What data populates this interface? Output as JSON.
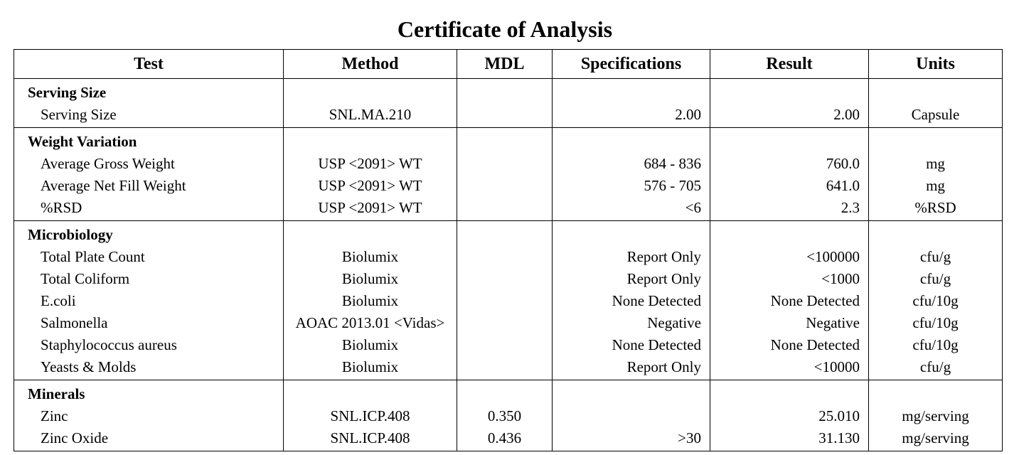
{
  "title": "Certificate of Analysis",
  "headers": {
    "test": "Test",
    "method": "Method",
    "mdl": "MDL",
    "specifications": "Specifications",
    "result": "Result",
    "units": "Units"
  },
  "groups": [
    {
      "label": "Serving Size",
      "rows": [
        {
          "test": "Serving Size",
          "method": "SNL.MA.210",
          "mdl": "",
          "spec": "2.00",
          "result": "2.00",
          "units": "Capsule"
        }
      ]
    },
    {
      "label": "Weight Variation",
      "rows": [
        {
          "test": "Average Gross Weight",
          "method": "USP <2091> WT",
          "mdl": "",
          "spec": "684 - 836",
          "result": "760.0",
          "units": "mg"
        },
        {
          "test": "Average Net Fill Weight",
          "method": "USP <2091> WT",
          "mdl": "",
          "spec": "576 - 705",
          "result": "641.0",
          "units": "mg"
        },
        {
          "test": "%RSD",
          "method": "USP <2091> WT",
          "mdl": "",
          "spec": "<6",
          "result": "2.3",
          "units": "%RSD"
        }
      ]
    },
    {
      "label": "Microbiology",
      "rows": [
        {
          "test": "Total Plate Count",
          "method": "Biolumix",
          "mdl": "",
          "spec": "Report Only",
          "result": "<100000",
          "units": "cfu/g"
        },
        {
          "test": "Total Coliform",
          "method": "Biolumix",
          "mdl": "",
          "spec": "Report Only",
          "result": "<1000",
          "units": "cfu/g"
        },
        {
          "test": "E.coli",
          "method": "Biolumix",
          "mdl": "",
          "spec": "None Detected",
          "result": "None Detected",
          "units": "cfu/10g"
        },
        {
          "test": "Salmonella",
          "method": "AOAC 2013.01 <Vidas>",
          "mdl": "",
          "spec": "Negative",
          "result": "Negative",
          "units": "cfu/10g"
        },
        {
          "test": "Staphylococcus aureus",
          "method": "Biolumix",
          "mdl": "",
          "spec": "None Detected",
          "result": "None Detected",
          "units": "cfu/10g"
        },
        {
          "test": "Yeasts & Molds",
          "method": "Biolumix",
          "mdl": "",
          "spec": "Report Only",
          "result": "<10000",
          "units": "cfu/g"
        }
      ]
    },
    {
      "label": "Minerals",
      "rows": [
        {
          "test": "Zinc",
          "method": "SNL.ICP.408",
          "mdl": "0.350",
          "spec": "",
          "result": "25.010",
          "units": "mg/serving"
        },
        {
          "test": "Zinc Oxide",
          "method": "SNL.ICP.408",
          "mdl": "0.436",
          "spec": ">30",
          "result": "31.130",
          "units": "mg/serving"
        }
      ]
    }
  ]
}
